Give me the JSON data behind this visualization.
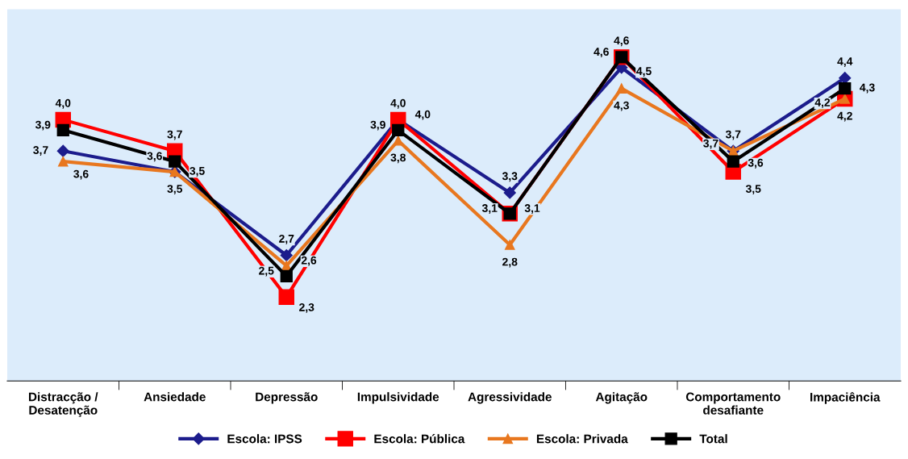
{
  "chart_data": {
    "type": "line",
    "categories": [
      "Distracção /\nDesatenção",
      "Ansiedade",
      "Depressão",
      "Impulsividade",
      "Agressividade",
      "Agitação",
      "Comportamento\ndesafiante",
      "Impaciência"
    ],
    "series": [
      {
        "name": "Escola: IPSS",
        "color": "#1c1c8c",
        "marker": "diamond",
        "values": [
          3.7,
          3.5,
          2.7,
          4.0,
          3.3,
          4.5,
          3.7,
          4.4
        ],
        "value_labels": [
          "3,7",
          "3,5",
          "2,7",
          "4,0",
          "3,3",
          "4,5",
          "3,7",
          "4,4"
        ]
      },
      {
        "name": "Escola: Pública",
        "color": "#ff0000",
        "marker": "square",
        "values": [
          4.0,
          3.7,
          2.3,
          4.0,
          3.1,
          4.6,
          3.5,
          4.2
        ],
        "value_labels": [
          "4,0",
          "3,7",
          "2,3",
          "4,0",
          "3,1",
          "4,6",
          "3,5",
          "4,2"
        ]
      },
      {
        "name": "Escola: Privada",
        "color": "#e8771f",
        "marker": "triangle",
        "values": [
          3.6,
          3.5,
          2.6,
          3.8,
          2.8,
          4.3,
          3.7,
          4.2
        ],
        "value_labels": [
          "3,6",
          "3,5",
          "2,6",
          "3,8",
          "2,8",
          "4,3",
          "3,7",
          "4,2"
        ]
      },
      {
        "name": "Total",
        "color": "#000000",
        "marker": "square",
        "values": [
          3.9,
          3.6,
          2.5,
          3.9,
          3.1,
          4.6,
          3.6,
          4.3
        ],
        "value_labels": [
          "3,9",
          "3,6",
          "2,5",
          "3,9",
          "3,1",
          "4,6",
          "3,6",
          "4,3"
        ]
      }
    ],
    "tick_labels": "x",
    "grid": false,
    "legend": "bottom",
    "line_style": "solid"
  }
}
